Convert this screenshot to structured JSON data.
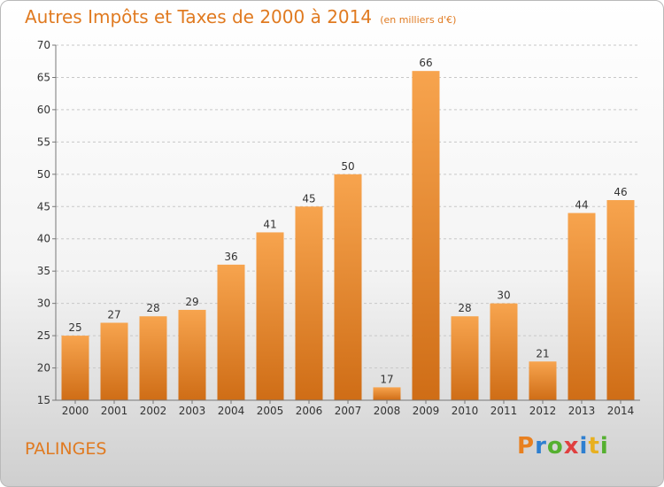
{
  "title": "Autres Impôts et Taxes de 2000 à 2014",
  "unit_note": "(en milliers d'€)",
  "place_name": "PALINGES",
  "logo_text": "Proxiti",
  "colors": {
    "title": "#e07a20",
    "bar_top": "#f7a44e",
    "bar_bottom": "#cf6d16",
    "grid": "#c8c8c8"
  },
  "chart_data": {
    "type": "bar",
    "title": "Autres Impôts et Taxes de 2000 à 2014",
    "subtitle": "(en milliers d'€)",
    "xlabel": "",
    "ylabel": "",
    "categories": [
      "2000",
      "2001",
      "2002",
      "2003",
      "2004",
      "2005",
      "2006",
      "2007",
      "2008",
      "2009",
      "2010",
      "2011",
      "2012",
      "2013",
      "2014"
    ],
    "values": [
      25,
      27,
      28,
      29,
      36,
      41,
      45,
      50,
      17,
      66,
      28,
      30,
      21,
      44,
      46
    ],
    "ylim": [
      15,
      70
    ],
    "yticks": [
      15,
      20,
      25,
      30,
      35,
      40,
      45,
      50,
      55,
      60,
      65,
      70
    ],
    "grid": true,
    "data_labels": true
  }
}
